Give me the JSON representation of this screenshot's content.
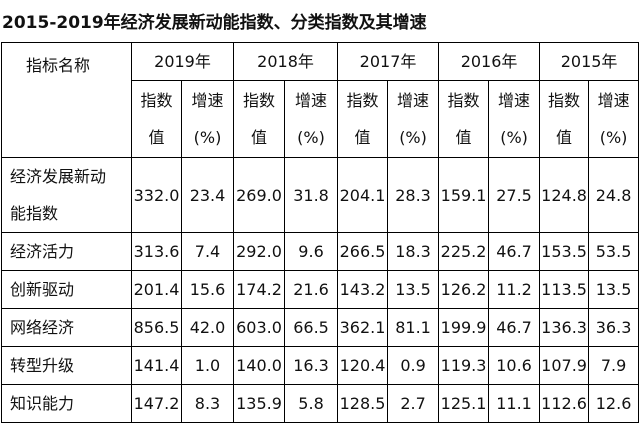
{
  "title": "2015-2019年经济发展新动能指数、分类指数及其增速",
  "table": {
    "corner": "指标名称",
    "years": [
      "2019年",
      "2018年",
      "2017年",
      "2016年",
      "2015年"
    ],
    "subheaders": [
      [
        "指数",
        "值"
      ],
      [
        "增速",
        "(%)"
      ]
    ],
    "rows": [
      {
        "name": [
          "经济发展新动",
          "能指数"
        ],
        "cells": [
          "332.0",
          "23.4",
          "269.0",
          "31.8",
          "204.1",
          "28.3",
          "159.1",
          "27.5",
          "124.8",
          "24.8"
        ]
      },
      {
        "name": [
          "经济活力"
        ],
        "cells": [
          "313.6",
          "7.4",
          "292.0",
          "9.6",
          "266.5",
          "18.3",
          "225.2",
          "46.7",
          "153.5",
          "53.5"
        ]
      },
      {
        "name": [
          "创新驱动"
        ],
        "cells": [
          "201.4",
          "15.6",
          "174.2",
          "21.6",
          "143.2",
          "13.5",
          "126.2",
          "11.2",
          "113.5",
          "13.5"
        ]
      },
      {
        "name": [
          "网络经济"
        ],
        "cells": [
          "856.5",
          "42.0",
          "603.0",
          "66.5",
          "362.1",
          "81.1",
          "199.9",
          "46.7",
          "136.3",
          "36.3"
        ]
      },
      {
        "name": [
          "转型升级"
        ],
        "cells": [
          "141.4",
          "1.0",
          "140.0",
          "16.3",
          "120.4",
          "0.9",
          "119.3",
          "10.6",
          "107.9",
          "7.9"
        ]
      },
      {
        "name": [
          "知识能力"
        ],
        "cells": [
          "147.2",
          "8.3",
          "135.9",
          "5.8",
          "128.5",
          "2.7",
          "125.1",
          "11.1",
          "112.6",
          "12.6"
        ]
      }
    ]
  }
}
